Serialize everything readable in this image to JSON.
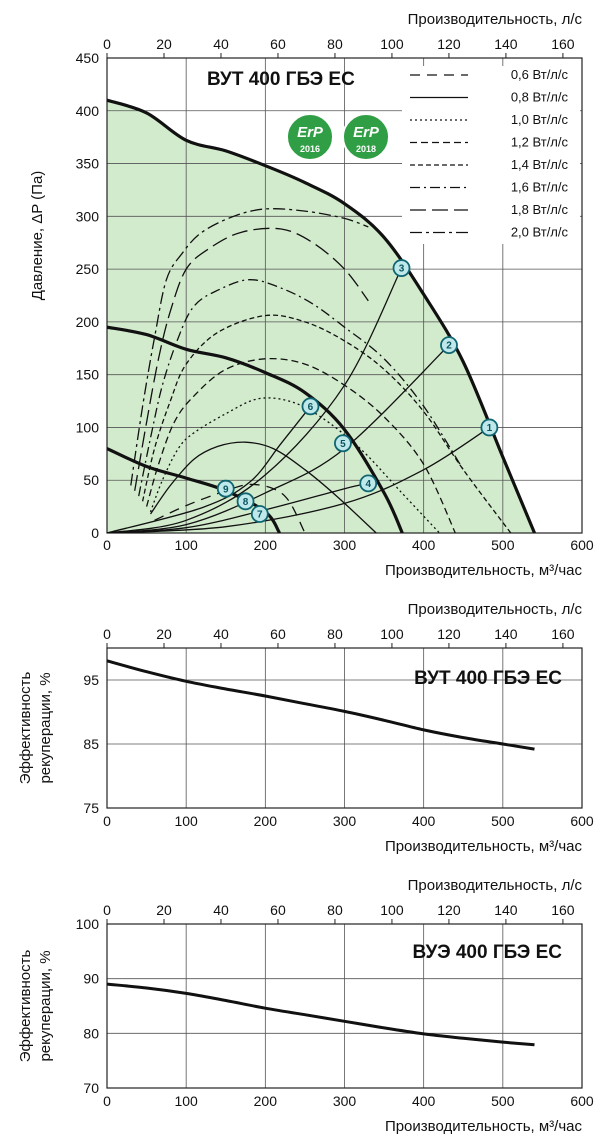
{
  "chart_data": [
    {
      "type": "line",
      "model_label": "ВУТ 400 ГБЭ ЕС",
      "xlabel": "Производительность, м³/час",
      "x2label": "Производительность, л/с",
      "ylabel": "Давление, ΔP (Па)",
      "xlim": [
        0,
        600
      ],
      "x2lim": [
        0,
        166.7
      ],
      "ylim": [
        0,
        450
      ],
      "x_ticks": [
        "0",
        "100",
        "200",
        "300",
        "400",
        "500",
        "600"
      ],
      "x2_ticks": [
        "0",
        "20",
        "40",
        "60",
        "80",
        "100",
        "120",
        "140",
        "160"
      ],
      "y_ticks": [
        "0",
        "50",
        "100",
        "150",
        "200",
        "250",
        "300",
        "350",
        "400",
        "450"
      ],
      "grid": true,
      "legend_position": "top-right",
      "badges": [
        {
          "brand": "ErP",
          "year": "2016"
        },
        {
          "brand": "ErP",
          "year": "2018"
        }
      ],
      "envelope": {
        "x": [
          0,
          50,
          100,
          150,
          200,
          250,
          300,
          350,
          400,
          450,
          500,
          540
        ],
        "y": [
          410,
          398,
          372,
          362,
          348,
          332,
          312,
          280,
          226,
          162,
          72,
          0
        ]
      },
      "fan_curves": [
        {
          "x": [
            0,
            50,
            100,
            150,
            200,
            250,
            300,
            350,
            373
          ],
          "y": [
            195,
            188,
            174,
            166,
            152,
            133,
            98,
            38,
            0
          ]
        },
        {
          "x": [
            0,
            50,
            100,
            150,
            200,
            218
          ],
          "y": [
            80,
            63,
            52,
            40,
            20,
            0
          ]
        }
      ],
      "legend": [
        "0,6 Вт/л/с",
        "0,8 Вт/л/с",
        "1,0 Вт/л/с",
        "1,2 Вт/л/с",
        "1,4 Вт/л/с",
        "1,6 Вт/л/с",
        "1,8 Вт/л/с",
        "2,0 Вт/л/с"
      ],
      "series": [
        {
          "name": "0,6 Вт/л/с",
          "x": [
            60,
            100,
            150,
            180,
            210,
            230,
            250
          ],
          "y": [
            12,
            26,
            40,
            46,
            42,
            30,
            0
          ]
        },
        {
          "name": "0,8 Вт/л/с",
          "x": [
            55,
            80,
            110,
            140,
            175,
            210,
            250,
            290,
            340
          ],
          "y": [
            18,
            45,
            70,
            82,
            86,
            80,
            60,
            35,
            0
          ]
        },
        {
          "name": "1,0 Вт/л/с",
          "x": [
            55,
            70,
            90,
            110,
            150,
            190,
            230,
            270,
            320,
            370,
            420
          ],
          "y": [
            20,
            50,
            80,
            95,
            113,
            127,
            125,
            110,
            80,
            40,
            0
          ]
        },
        {
          "name": "1,2 Вт/л/с",
          "x": [
            50,
            65,
            85,
            110,
            150,
            200,
            250,
            300,
            350,
            400,
            440
          ],
          "y": [
            25,
            65,
            105,
            130,
            155,
            165,
            160,
            140,
            110,
            65,
            0
          ]
        },
        {
          "name": "1,4 Вт/л/с",
          "x": [
            45,
            60,
            80,
            100,
            140,
            200,
            250,
            300,
            350,
            400,
            450,
            510
          ],
          "y": [
            30,
            80,
            125,
            160,
            190,
            206,
            200,
            182,
            155,
            115,
            60,
            0
          ]
        },
        {
          "name": "1,6 Вт/л/с",
          "x": [
            40,
            55,
            70,
            90,
            110,
            140,
            180,
            220,
            260,
            300,
            350,
            400,
            450
          ],
          "y": [
            35,
            90,
            140,
            185,
            215,
            230,
            240,
            232,
            217,
            195,
            165,
            120,
            60
          ]
        },
        {
          "name": "1,8 Вт/л/с",
          "x": [
            35,
            50,
            65,
            80,
            100,
            130,
            170,
            220,
            260,
            300,
            330
          ],
          "y": [
            40,
            105,
            165,
            210,
            250,
            270,
            285,
            288,
            275,
            250,
            220
          ]
        },
        {
          "name": "2,0 Вт/л/с",
          "x": [
            30,
            45,
            60,
            75,
            95,
            120,
            160,
            200,
            250,
            300,
            330
          ],
          "y": [
            45,
            120,
            185,
            240,
            265,
            285,
            300,
            307,
            305,
            298,
            290
          ]
        }
      ],
      "system_curves": [
        {
          "x": [
            0,
            100,
            200,
            300,
            372
          ],
          "y": [
            0,
            12,
            55,
            140,
            251
          ]
        },
        {
          "x": [
            0,
            100,
            200,
            300,
            432
          ],
          "y": [
            0,
            8,
            38,
            80,
            178
          ]
        },
        {
          "x": [
            0,
            150,
            300,
            400,
            483
          ],
          "y": [
            0,
            6,
            28,
            60,
            100
          ]
        },
        {
          "x": [
            0,
            120,
            180,
            220,
            257
          ],
          "y": [
            0,
            24,
            48,
            85,
            120
          ]
        },
        {
          "x": [
            0,
            100,
            200,
            300,
            330
          ],
          "y": [
            0,
            5,
            22,
            42,
            47
          ]
        }
      ],
      "markers": [
        {
          "label": "1",
          "x": 483,
          "y": 100
        },
        {
          "label": "2",
          "x": 432,
          "y": 178
        },
        {
          "label": "3",
          "x": 372,
          "y": 251
        },
        {
          "label": "4",
          "x": 330,
          "y": 47
        },
        {
          "label": "5",
          "x": 298,
          "y": 85
        },
        {
          "label": "6",
          "x": 257,
          "y": 120
        },
        {
          "label": "7",
          "x": 193,
          "y": 18
        },
        {
          "label": "8",
          "x": 175,
          "y": 30
        },
        {
          "label": "9",
          "x": 150,
          "y": 42
        }
      ]
    },
    {
      "type": "line",
      "model_label": "ВУТ 400 ГБЭ ЕС",
      "xlabel": "Производительность, м³/час",
      "x2label": "Производительность, л/с",
      "ylabel": "Эффективность рекуперации, %",
      "ylabel_lines": [
        "Эффективность",
        "рекуперации, %"
      ],
      "xlim": [
        0,
        600
      ],
      "x2lim": [
        0,
        166.7
      ],
      "ylim": [
        75,
        100
      ],
      "x_ticks": [
        "0",
        "100",
        "200",
        "300",
        "400",
        "500",
        "600"
      ],
      "x2_ticks": [
        "0",
        "20",
        "40",
        "60",
        "80",
        "100",
        "120",
        "140",
        "160"
      ],
      "y_ticks": [
        "75",
        "85",
        "95"
      ],
      "y_tick_values": [
        75,
        85,
        95
      ],
      "grid": true,
      "series": [
        {
          "x": [
            0,
            50,
            100,
            150,
            200,
            250,
            300,
            350,
            400,
            450,
            500,
            540
          ],
          "y": [
            98,
            96.3,
            94.8,
            93.6,
            92.5,
            91.3,
            90.1,
            88.7,
            87.2,
            86,
            85,
            84.2
          ]
        }
      ]
    },
    {
      "type": "line",
      "model_label": "ВУЭ 400 ГБЭ ЕС",
      "xlabel": "Производительность, м³/час",
      "x2label": "Производительность, л/с",
      "ylabel": "Эффективность рекуперации, %",
      "ylabel_lines": [
        "Эффективность",
        "рекуперации, %"
      ],
      "xlim": [
        0,
        600
      ],
      "x2lim": [
        0,
        166.7
      ],
      "ylim": [
        70,
        100
      ],
      "x_ticks": [
        "0",
        "100",
        "200",
        "300",
        "400",
        "500",
        "600"
      ],
      "x2_ticks": [
        "0",
        "20",
        "40",
        "60",
        "80",
        "100",
        "120",
        "140",
        "160"
      ],
      "y_ticks": [
        "70",
        "80",
        "90",
        "100"
      ],
      "y_tick_values": [
        70,
        80,
        90,
        100
      ],
      "grid": true,
      "series": [
        {
          "x": [
            0,
            50,
            100,
            150,
            200,
            250,
            300,
            350,
            400,
            450,
            500,
            540
          ],
          "y": [
            89,
            88.3,
            87.3,
            86,
            84.6,
            83.4,
            82.2,
            81,
            79.9,
            79.1,
            78.4,
            77.9
          ]
        }
      ]
    }
  ]
}
